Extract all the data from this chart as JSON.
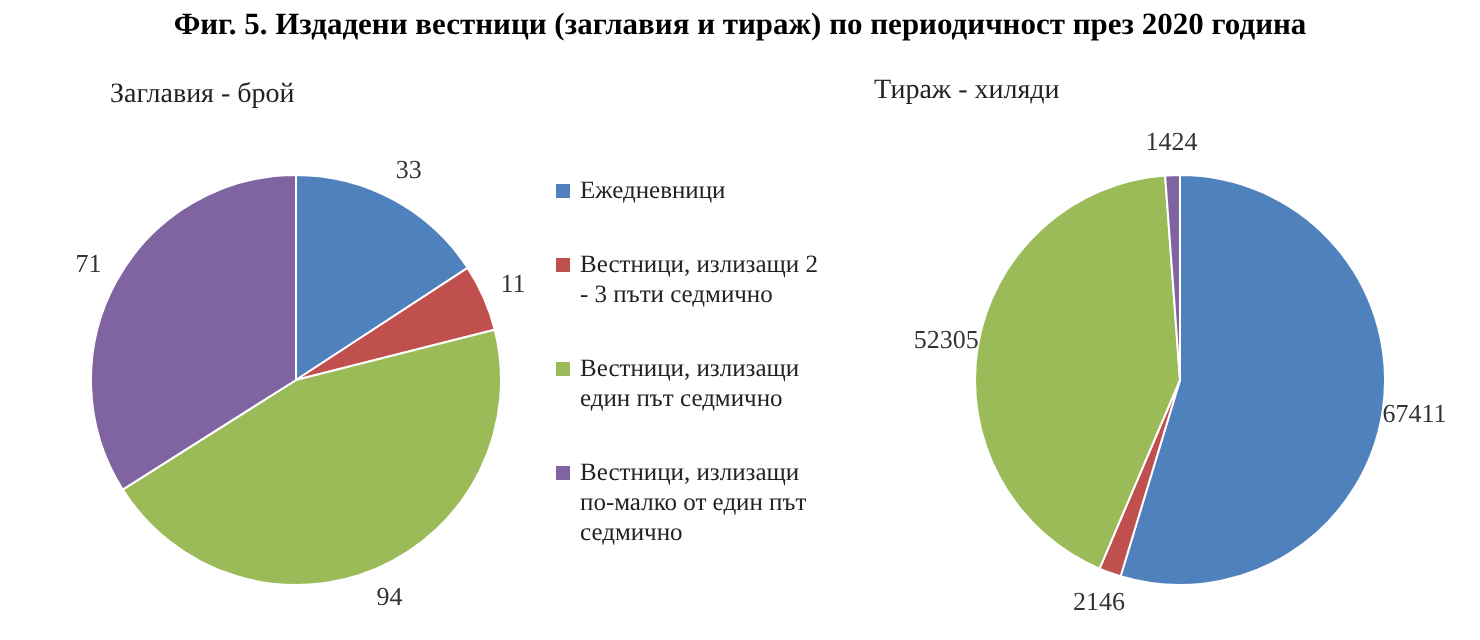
{
  "chart_data": [
    {
      "type": "pie",
      "title": "Фиг. 5. Издадени вестници (заглавия и тираж) по периодичност през 2020 година",
      "subtitle": "Заглавия - брой",
      "categories": [
        "Ежедневници",
        "Вестници, излизащи 2 - 3 пъти седмично",
        "Вестници, излизащи един път седмично",
        "Вестници, излизащи по-малко от един път седмично"
      ],
      "values": [
        33,
        11,
        94,
        71
      ],
      "colors": [
        "#4f81bd",
        "#c0504d",
        "#9bbb59",
        "#8064a2"
      ],
      "data_labels": true,
      "legend": "right"
    },
    {
      "type": "pie",
      "title": "Тираж - хиляди",
      "categories": [
        null,
        null,
        null,
        null
      ],
      "values": [
        67411,
        2146,
        52305,
        1424
      ],
      "colors": [
        "#4f81bd",
        "#c0504d",
        "#9bbb59",
        "#8064a2"
      ],
      "data_labels": true
    }
  ]
}
